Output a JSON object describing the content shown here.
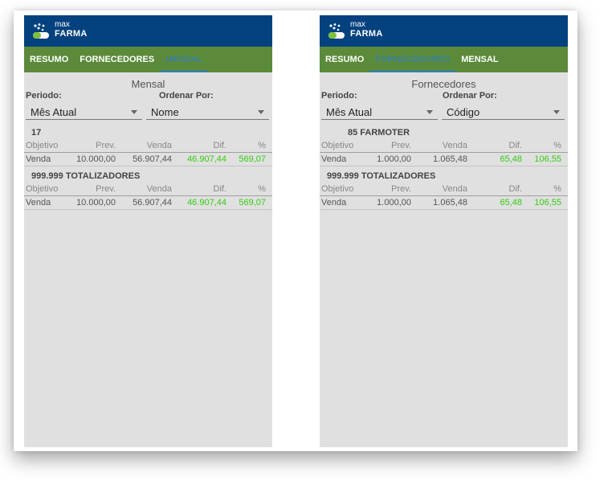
{
  "app": {
    "logo_top": "max",
    "logo_bottom": "FARMA"
  },
  "colors": {
    "appbar": "#03427e",
    "tabbar": "#5b8a3a",
    "active_tab": "#2e7fc4",
    "positive_value": "#33cc11",
    "background": "#e0e0e0"
  },
  "screens": [
    {
      "tabs": [
        {
          "label": "RESUMO",
          "active": false
        },
        {
          "label": "FORNECEDORES",
          "active": false
        },
        {
          "label": "MENSAL",
          "active": true
        }
      ],
      "title": "Mensal",
      "period_label": "Periodo:",
      "order_label": "Ordenar Por:",
      "period_value": "Mês Atual",
      "order_value": "Nome",
      "groups": [
        {
          "title": "17",
          "columns": [
            "Objetivo",
            "Prev.",
            "Venda",
            "Dif.",
            "%"
          ],
          "row": [
            "Venda",
            "10.000,00",
            "56.907,44",
            "46.907,44",
            "569,07"
          ]
        },
        {
          "title": "999.999 TOTALIZADORES",
          "columns": [
            "Objetivo",
            "Prev.",
            "Venda",
            "Dif.",
            "%"
          ],
          "row": [
            "Venda",
            "10.000,00",
            "56.907,44",
            "46.907,44",
            "569,07"
          ]
        }
      ]
    },
    {
      "tabs": [
        {
          "label": "RESUMO",
          "active": false
        },
        {
          "label": "FORNECEDORES",
          "active": true
        },
        {
          "label": "MENSAL",
          "active": false
        }
      ],
      "title": "Fornecedores",
      "period_label": "Periodo:",
      "order_label": "Ordenar Por:",
      "period_value": "Mês Atual",
      "order_value": "Código",
      "groups": [
        {
          "title": "85 FARMOTER",
          "columns": [
            "Objetivo",
            "Prev.",
            "Venda",
            "Dif.",
            "%"
          ],
          "row": [
            "Venda",
            "1.000,00",
            "1.065,48",
            "65,48",
            "106,55"
          ]
        },
        {
          "title": "999.999 TOTALIZADORES",
          "columns": [
            "Objetivo",
            "Prev.",
            "Venda",
            "Dif.",
            "%"
          ],
          "row": [
            "Venda",
            "1.000,00",
            "1.065,48",
            "65,48",
            "106,55"
          ]
        }
      ]
    }
  ]
}
